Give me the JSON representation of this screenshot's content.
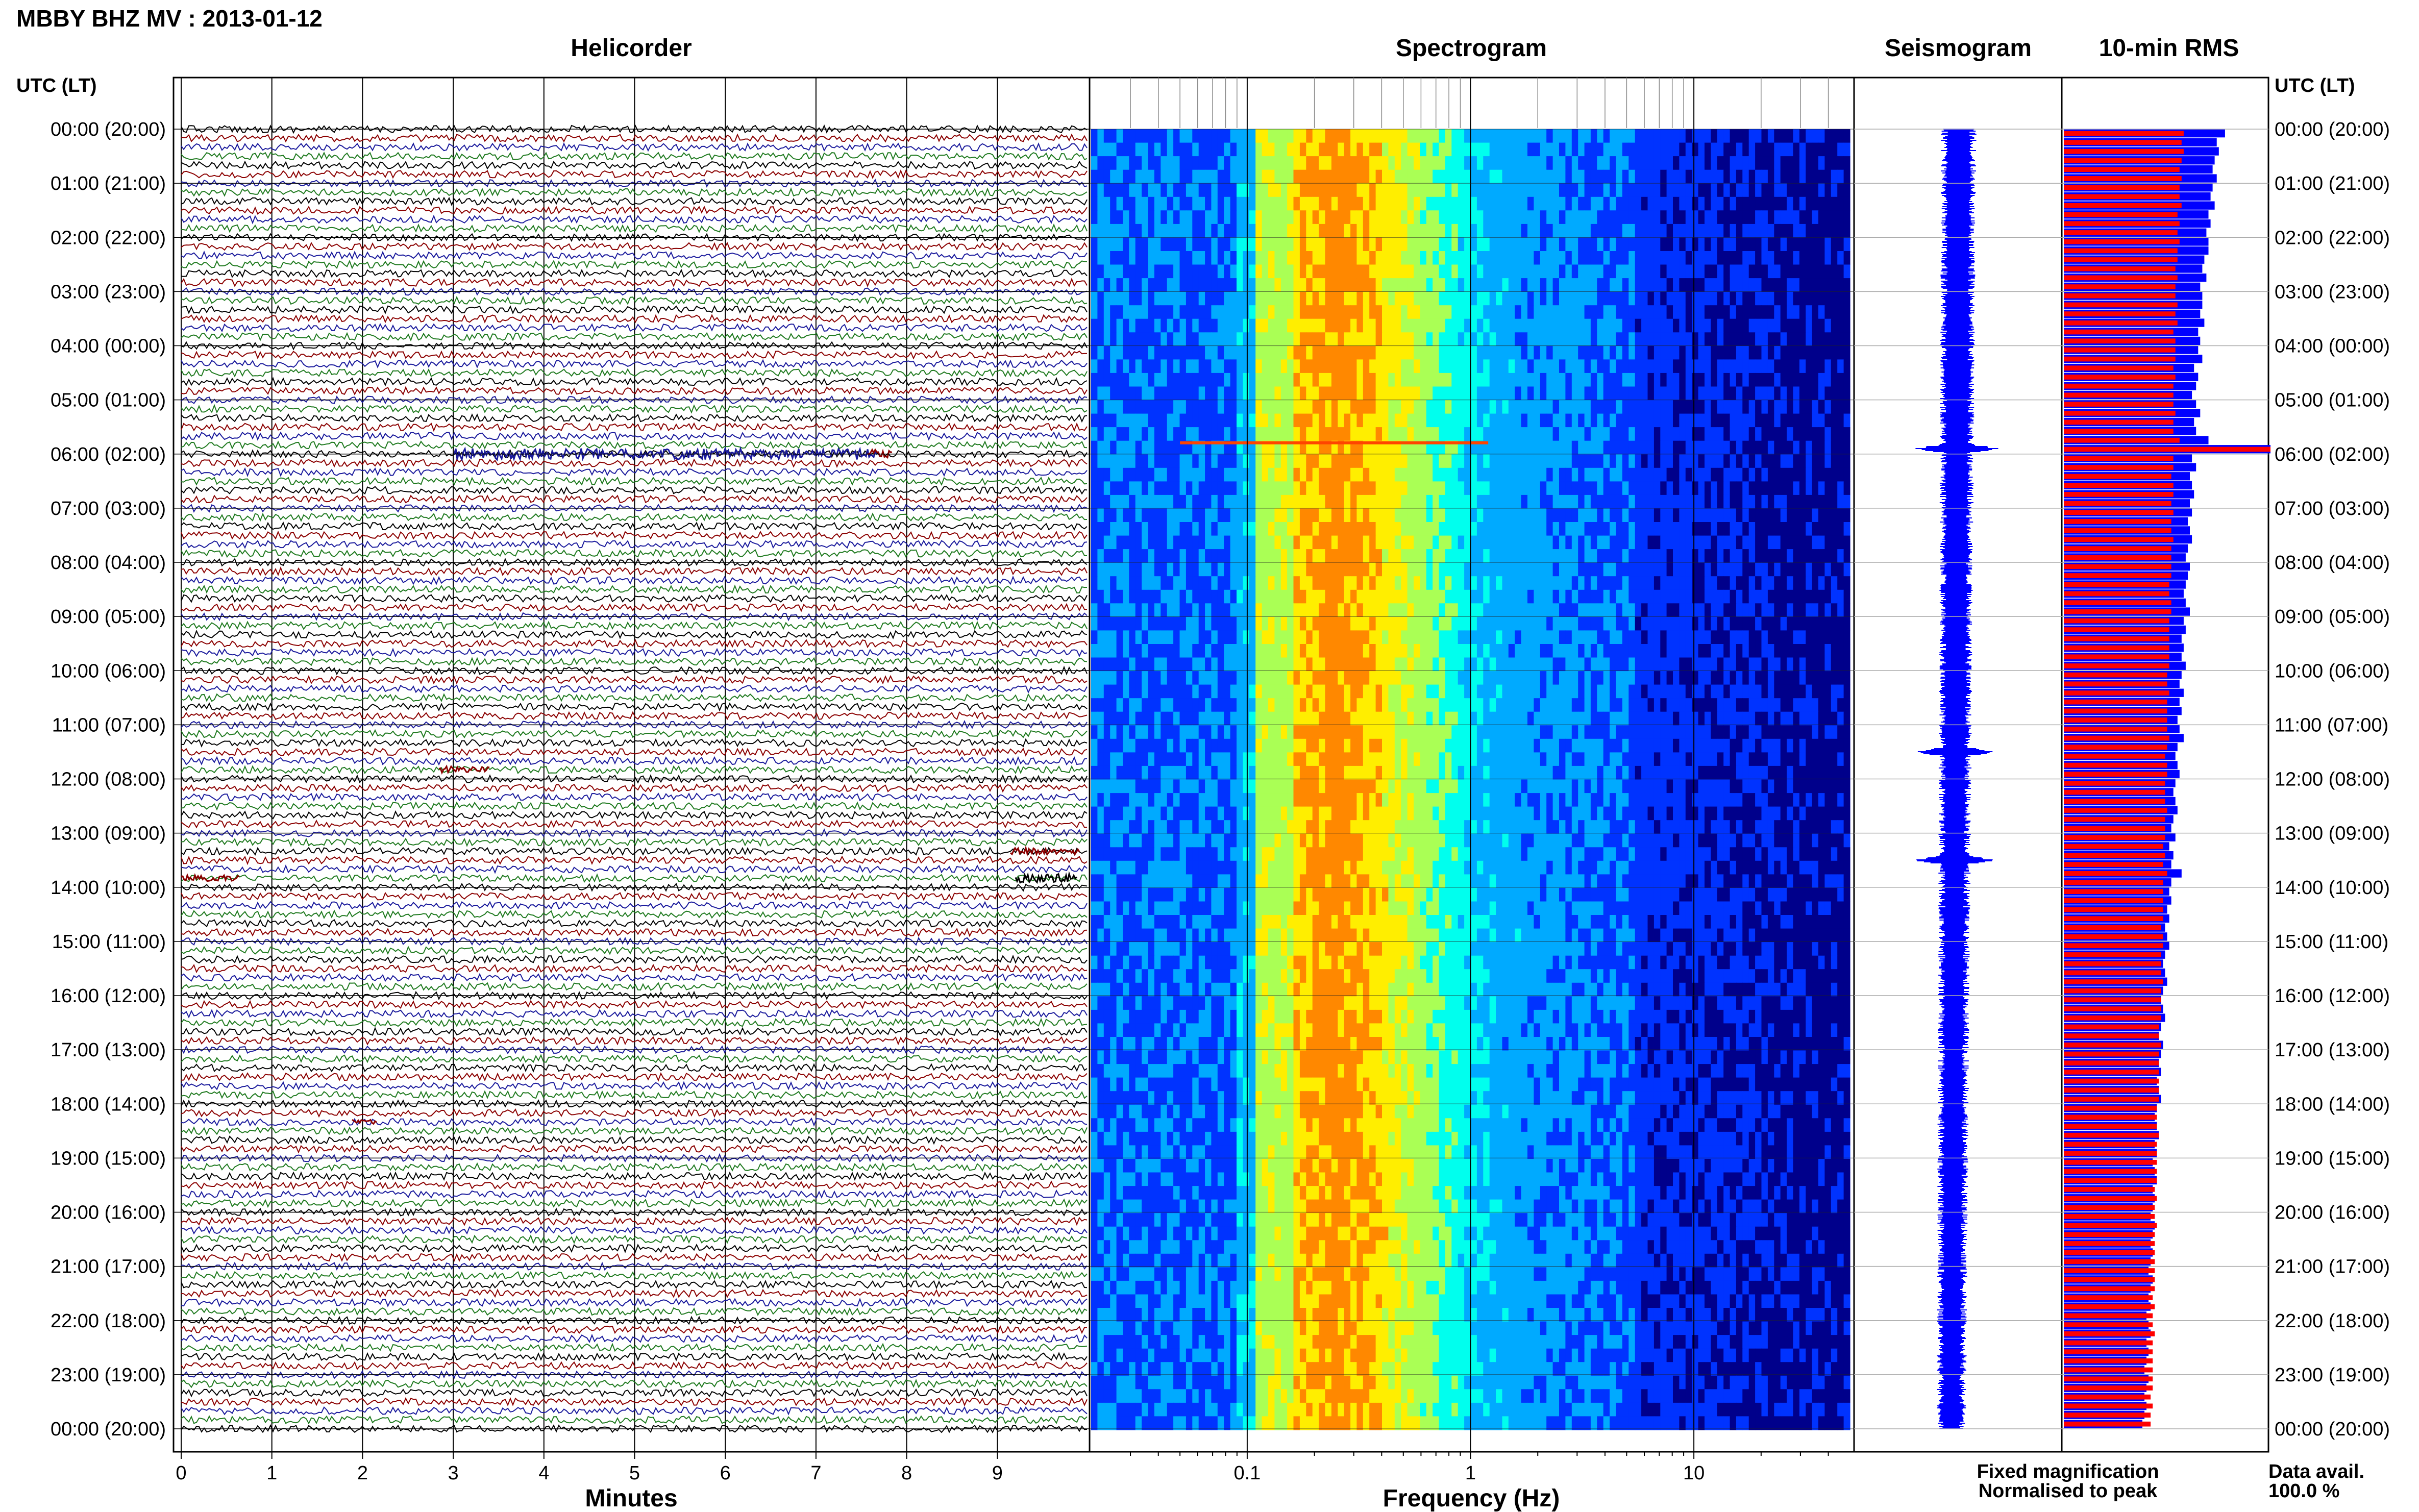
{
  "title": "MBBY BHZ MV : 2013-01-12",
  "panels": {
    "helicorder": "Helicorder",
    "spectrogram": "Spectrogram",
    "seismogram": "Seismogram",
    "rms": "10-min RMS"
  },
  "time_axis_label": "UTC (LT)",
  "legend": {
    "fixed": "Fixed magnification",
    "fixed_color": "#1a1aff",
    "normalised": "Normalised to peak",
    "normalised_color": "#ff1a1a",
    "data_avail_label": "Data avail.",
    "data_avail_value": "100.0 %"
  },
  "colors": {
    "trace_cycle": [
      "#000000",
      "#8b0000",
      "#1a1a9c",
      "#1f7a1f"
    ],
    "rms_fixed": "#0000ff",
    "rms_normalised": "#ff0000",
    "seismogram": "#0000ff"
  },
  "chart_data": [
    {
      "type": "line",
      "name": "helicorder",
      "xlabel": "Minutes",
      "xlim": [
        0,
        10
      ],
      "x_ticks": [
        0,
        1,
        2,
        3,
        4,
        5,
        6,
        7,
        8,
        9
      ],
      "rows_per_hour": 6,
      "hours": 24,
      "y_tick_labels": [
        "00:00 (20:00)",
        "01:00 (21:00)",
        "02:00 (22:00)",
        "03:00 (23:00)",
        "04:00 (00:00)",
        "05:00 (01:00)",
        "06:00 (02:00)",
        "07:00 (03:00)",
        "08:00 (04:00)",
        "09:00 (05:00)",
        "10:00 (06:00)",
        "11:00 (07:00)",
        "12:00 (08:00)",
        "13:00 (09:00)",
        "14:00 (10:00)",
        "15:00 (11:00)",
        "16:00 (12:00)",
        "17:00 (13:00)",
        "18:00 (14:00)",
        "19:00 (15:00)",
        "20:00 (16:00)",
        "21:00 (17:00)",
        "22:00 (18:00)",
        "23:00 (19:00)",
        "00:00 (20:00)"
      ]
    },
    {
      "type": "heatmap",
      "name": "spectrogram",
      "xlabel": "Frequency (Hz)",
      "xscale": "log",
      "xlim": [
        0.02,
        50
      ],
      "x_tick_labels": [
        "0.1",
        "1",
        "10"
      ],
      "colormap": [
        "#00008b",
        "#0033ff",
        "#00aaff",
        "#00ffee",
        "#aaff55",
        "#ffee00",
        "#ff8800"
      ],
      "peak_band_hz": [
        0.15,
        0.35
      ]
    },
    {
      "type": "line",
      "name": "seismogram",
      "notes_events_hours": [
        5.9,
        11.5,
        13.5
      ]
    },
    {
      "type": "bar",
      "name": "10-min RMS",
      "orientation": "horizontal",
      "series": [
        {
          "name": "Fixed magnification",
          "values": [
            0.78,
            0.74,
            0.75,
            0.73,
            0.72,
            0.74,
            0.72,
            0.71,
            0.73,
            0.7,
            0.71,
            0.69,
            0.7,
            0.7,
            0.68,
            0.67,
            0.69,
            0.66,
            0.67,
            0.67,
            0.66,
            0.68,
            0.65,
            0.66,
            0.65,
            0.67,
            0.63,
            0.65,
            0.64,
            0.62,
            0.64,
            0.66,
            0.63,
            0.64,
            0.7,
            1.0,
            0.62,
            0.64,
            0.61,
            0.62,
            0.63,
            0.61,
            0.62,
            0.6,
            0.61,
            0.62,
            0.6,
            0.59,
            0.61,
            0.6,
            0.59,
            0.58,
            0.59,
            0.61,
            0.58,
            0.59,
            0.57,
            0.58,
            0.57,
            0.59,
            0.57,
            0.56,
            0.58,
            0.56,
            0.57,
            0.55,
            0.56,
            0.58,
            0.55,
            0.54,
            0.55,
            0.56,
            0.54,
            0.53,
            0.54,
            0.55,
            0.53,
            0.52,
            0.54,
            0.51,
            0.53,
            0.52,
            0.57,
            0.52,
            0.51,
            0.52,
            0.5,
            0.51,
            0.49,
            0.5,
            0.51,
            0.49,
            0.48,
            0.49,
            0.5,
            0.48,
            0.47,
            0.48,
            0.49,
            0.47,
            0.46,
            0.48,
            0.47,
            0.46,
            0.47,
            0.45,
            0.46,
            0.47,
            0.45,
            0.44,
            0.45,
            0.46,
            0.44,
            0.45,
            0.43,
            0.44,
            0.45,
            0.43,
            0.44,
            0.43,
            0.42,
            0.44,
            0.43,
            0.42,
            0.43,
            0.42,
            0.41,
            0.43,
            0.42,
            0.41,
            0.42,
            0.4,
            0.41,
            0.42,
            0.4,
            0.41,
            0.4,
            0.39,
            0.41,
            0.4,
            0.39,
            0.4,
            0.39,
            0.38
          ]
        },
        {
          "name": "Normalised to peak",
          "values": [
            0.58,
            0.57,
            0.58,
            0.57,
            0.56,
            0.57,
            0.56,
            0.56,
            0.57,
            0.55,
            0.56,
            0.55,
            0.56,
            0.55,
            0.55,
            0.54,
            0.55,
            0.54,
            0.54,
            0.55,
            0.54,
            0.55,
            0.53,
            0.54,
            0.54,
            0.54,
            0.53,
            0.54,
            0.53,
            0.53,
            0.53,
            0.54,
            0.53,
            0.53,
            0.56,
            1.0,
            0.53,
            0.53,
            0.52,
            0.53,
            0.53,
            0.52,
            0.53,
            0.52,
            0.52,
            0.53,
            0.52,
            0.52,
            0.52,
            0.52,
            0.51,
            0.51,
            0.52,
            0.52,
            0.51,
            0.51,
            0.51,
            0.51,
            0.51,
            0.51,
            0.5,
            0.5,
            0.51,
            0.5,
            0.5,
            0.5,
            0.5,
            0.51,
            0.5,
            0.49,
            0.5,
            0.5,
            0.49,
            0.49,
            0.49,
            0.5,
            0.49,
            0.49,
            0.49,
            0.48,
            0.49,
            0.48,
            0.5,
            0.48,
            0.48,
            0.48,
            0.48,
            0.48,
            0.47,
            0.48,
            0.48,
            0.47,
            0.47,
            0.47,
            0.48,
            0.47,
            0.47,
            0.47,
            0.47,
            0.46,
            0.46,
            0.47,
            0.46,
            0.46,
            0.46,
            0.46,
            0.46,
            0.46,
            0.45,
            0.45,
            0.45,
            0.46,
            0.45,
            0.45,
            0.45,
            0.45,
            0.45,
            0.44,
            0.45,
            0.44,
            0.44,
            0.45,
            0.44,
            0.44,
            0.44,
            0.44,
            0.44,
            0.44,
            0.44,
            0.43,
            0.44,
            0.43,
            0.43,
            0.44,
            0.43,
            0.43,
            0.43,
            0.43,
            0.43,
            0.43,
            0.42,
            0.43,
            0.42,
            0.42
          ]
        }
      ]
    }
  ]
}
